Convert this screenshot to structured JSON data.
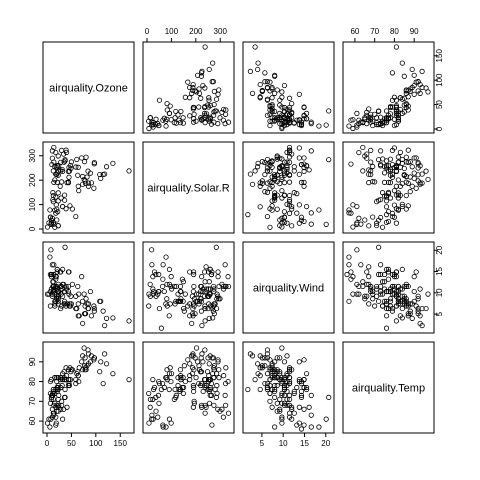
{
  "chart_data": {
    "type": "scatter",
    "kind": "scatterplot-matrix",
    "variables": [
      "airquality.Ozone",
      "airquality.Solar.R",
      "airquality.Wind",
      "airquality.Temp"
    ],
    "axes": {
      "airquality.Ozone": {
        "range": [
          0,
          170
        ],
        "ticks": [
          0,
          50,
          100,
          150
        ],
        "tick_labels": [
          "0",
          "50",
          "100",
          "150"
        ]
      },
      "airquality.Solar.R": {
        "range": [
          0,
          340
        ],
        "ticks": [
          0,
          100,
          200,
          300
        ],
        "tick_labels": [
          "0",
          "100",
          "200",
          "300"
        ]
      },
      "airquality.Wind": {
        "range": [
          1.5,
          21
        ],
        "ticks": [
          5,
          10,
          15,
          20
        ],
        "tick_labels": [
          "5",
          "10",
          "15",
          "20"
        ]
      },
      "airquality.Temp": {
        "range": [
          56,
          98
        ],
        "ticks": [
          60,
          70,
          80,
          90
        ],
        "tick_labels": [
          "60",
          "70",
          "80",
          "90"
        ]
      }
    },
    "marker": "open-circle",
    "observations": [
      {
        "ozone": 41,
        "solar": 190,
        "wind": 7.4,
        "temp": 67
      },
      {
        "ozone": 36,
        "solar": 118,
        "wind": 8.0,
        "temp": 72
      },
      {
        "ozone": 12,
        "solar": 149,
        "wind": 12.6,
        "temp": 74
      },
      {
        "ozone": 18,
        "solar": 313,
        "wind": 11.5,
        "temp": 62
      },
      {
        "ozone": null,
        "solar": null,
        "wind": 14.3,
        "temp": 56
      },
      {
        "ozone": 28,
        "solar": null,
        "wind": 14.9,
        "temp": 66
      },
      {
        "ozone": 23,
        "solar": 299,
        "wind": 8.6,
        "temp": 65
      },
      {
        "ozone": 19,
        "solar": 99,
        "wind": 13.8,
        "temp": 59
      },
      {
        "ozone": 8,
        "solar": 19,
        "wind": 20.1,
        "temp": 61
      },
      {
        "ozone": null,
        "solar": 194,
        "wind": 8.6,
        "temp": 69
      },
      {
        "ozone": 7,
        "solar": null,
        "wind": 6.9,
        "temp": 74
      },
      {
        "ozone": 16,
        "solar": 256,
        "wind": 9.7,
        "temp": 69
      },
      {
        "ozone": 11,
        "solar": 290,
        "wind": 9.2,
        "temp": 66
      },
      {
        "ozone": 14,
        "solar": 274,
        "wind": 10.9,
        "temp": 68
      },
      {
        "ozone": 18,
        "solar": 65,
        "wind": 13.2,
        "temp": 58
      },
      {
        "ozone": 14,
        "solar": 334,
        "wind": 11.5,
        "temp": 64
      },
      {
        "ozone": 34,
        "solar": 307,
        "wind": 12.0,
        "temp": 66
      },
      {
        "ozone": 6,
        "solar": 78,
        "wind": 18.4,
        "temp": 57
      },
      {
        "ozone": 30,
        "solar": 322,
        "wind": 11.5,
        "temp": 68
      },
      {
        "ozone": 11,
        "solar": 44,
        "wind": 9.7,
        "temp": 62
      },
      {
        "ozone": 1,
        "solar": 8,
        "wind": 9.7,
        "temp": 59
      },
      {
        "ozone": 11,
        "solar": 320,
        "wind": 16.6,
        "temp": 73
      },
      {
        "ozone": 4,
        "solar": 25,
        "wind": 9.7,
        "temp": 61
      },
      {
        "ozone": 32,
        "solar": 92,
        "wind": 12.0,
        "temp": 61
      },
      {
        "ozone": null,
        "solar": 66,
        "wind": 16.6,
        "temp": 57
      },
      {
        "ozone": null,
        "solar": 266,
        "wind": 14.9,
        "temp": 58
      },
      {
        "ozone": null,
        "solar": null,
        "wind": 8.0,
        "temp": 57
      },
      {
        "ozone": 23,
        "solar": 13,
        "wind": 12.0,
        "temp": 67
      },
      {
        "ozone": 45,
        "solar": 252,
        "wind": 14.9,
        "temp": 81
      },
      {
        "ozone": 115,
        "solar": 223,
        "wind": 5.7,
        "temp": 79
      },
      {
        "ozone": 37,
        "solar": 279,
        "wind": 7.4,
        "temp": 76
      },
      {
        "ozone": null,
        "solar": 286,
        "wind": 8.6,
        "temp": 78
      },
      {
        "ozone": null,
        "solar": 287,
        "wind": 9.7,
        "temp": 74
      },
      {
        "ozone": null,
        "solar": 242,
        "wind": 16.1,
        "temp": 67
      },
      {
        "ozone": null,
        "solar": 186,
        "wind": 9.2,
        "temp": 84
      },
      {
        "ozone": null,
        "solar": 220,
        "wind": 8.6,
        "temp": 85
      },
      {
        "ozone": null,
        "solar": 264,
        "wind": 14.3,
        "temp": 79
      },
      {
        "ozone": 29,
        "solar": 127,
        "wind": 9.7,
        "temp": 82
      },
      {
        "ozone": null,
        "solar": 273,
        "wind": 6.9,
        "temp": 87
      },
      {
        "ozone": 71,
        "solar": 291,
        "wind": 13.8,
        "temp": 90
      },
      {
        "ozone": 39,
        "solar": 323,
        "wind": 11.5,
        "temp": 87
      },
      {
        "ozone": null,
        "solar": 259,
        "wind": 10.9,
        "temp": 93
      },
      {
        "ozone": null,
        "solar": 250,
        "wind": 9.2,
        "temp": 92
      },
      {
        "ozone": 23,
        "solar": 148,
        "wind": 8.0,
        "temp": 82
      },
      {
        "ozone": null,
        "solar": 332,
        "wind": 13.8,
        "temp": 80
      },
      {
        "ozone": null,
        "solar": 322,
        "wind": 11.5,
        "temp": 79
      },
      {
        "ozone": 21,
        "solar": 191,
        "wind": 14.9,
        "temp": 77
      },
      {
        "ozone": 37,
        "solar": 284,
        "wind": 20.7,
        "temp": 72
      },
      {
        "ozone": 20,
        "solar": 37,
        "wind": 9.2,
        "temp": 65
      },
      {
        "ozone": 12,
        "solar": 120,
        "wind": 11.5,
        "temp": 73
      },
      {
        "ozone": 13,
        "solar": 137,
        "wind": 10.3,
        "temp": 76
      },
      {
        "ozone": null,
        "solar": 150,
        "wind": 6.3,
        "temp": 77
      },
      {
        "ozone": null,
        "solar": 59,
        "wind": 1.7,
        "temp": 76
      },
      {
        "ozone": null,
        "solar": 91,
        "wind": 4.6,
        "temp": 76
      },
      {
        "ozone": null,
        "solar": 250,
        "wind": 6.3,
        "temp": 76
      },
      {
        "ozone": null,
        "solar": 135,
        "wind": 8.0,
        "temp": 75
      },
      {
        "ozone": null,
        "solar": 127,
        "wind": 8.0,
        "temp": 78
      },
      {
        "ozone": null,
        "solar": 47,
        "wind": 10.3,
        "temp": 73
      },
      {
        "ozone": null,
        "solar": 98,
        "wind": 11.5,
        "temp": 80
      },
      {
        "ozone": null,
        "solar": 31,
        "wind": 14.9,
        "temp": 77
      },
      {
        "ozone": null,
        "solar": 138,
        "wind": 8.0,
        "temp": 83
      },
      {
        "ozone": 135,
        "solar": 269,
        "wind": 4.1,
        "temp": 84
      },
      {
        "ozone": 49,
        "solar": 248,
        "wind": 9.2,
        "temp": 85
      },
      {
        "ozone": 32,
        "solar": 236,
        "wind": 9.2,
        "temp": 81
      },
      {
        "ozone": null,
        "solar": 101,
        "wind": 10.9,
        "temp": 84
      },
      {
        "ozone": 64,
        "solar": 175,
        "wind": 4.6,
        "temp": 83
      },
      {
        "ozone": 40,
        "solar": 314,
        "wind": 10.9,
        "temp": 83
      },
      {
        "ozone": 77,
        "solar": 276,
        "wind": 5.1,
        "temp": 88
      },
      {
        "ozone": 97,
        "solar": 267,
        "wind": 6.3,
        "temp": 92
      },
      {
        "ozone": 97,
        "solar": 272,
        "wind": 5.7,
        "temp": 92
      },
      {
        "ozone": 85,
        "solar": 175,
        "wind": 7.4,
        "temp": 89
      },
      {
        "ozone": null,
        "solar": 139,
        "wind": 8.6,
        "temp": 82
      },
      {
        "ozone": 10,
        "solar": 264,
        "wind": 14.3,
        "temp": 73
      },
      {
        "ozone": 27,
        "solar": 175,
        "wind": 14.9,
        "temp": 81
      },
      {
        "ozone": null,
        "solar": 291,
        "wind": 14.9,
        "temp": 91
      },
      {
        "ozone": 7,
        "solar": 48,
        "wind": 14.3,
        "temp": 80
      },
      {
        "ozone": 48,
        "solar": 260,
        "wind": 6.9,
        "temp": 81
      },
      {
        "ozone": 35,
        "solar": 274,
        "wind": 10.3,
        "temp": 82
      },
      {
        "ozone": 61,
        "solar": 285,
        "wind": 6.3,
        "temp": 84
      },
      {
        "ozone": 79,
        "solar": 187,
        "wind": 5.1,
        "temp": 87
      },
      {
        "ozone": 63,
        "solar": 220,
        "wind": 11.5,
        "temp": 85
      },
      {
        "ozone": 16,
        "solar": 7,
        "wind": 6.9,
        "temp": 74
      },
      {
        "ozone": null,
        "solar": 258,
        "wind": 9.7,
        "temp": 81
      },
      {
        "ozone": null,
        "solar": 295,
        "wind": 11.5,
        "temp": 82
      },
      {
        "ozone": 80,
        "solar": 294,
        "wind": 8.6,
        "temp": 86
      },
      {
        "ozone": 108,
        "solar": 223,
        "wind": 8.0,
        "temp": 85
      },
      {
        "ozone": 20,
        "solar": 81,
        "wind": 8.6,
        "temp": 82
      },
      {
        "ozone": 52,
        "solar": 82,
        "wind": 12.0,
        "temp": 86
      },
      {
        "ozone": 82,
        "solar": 213,
        "wind": 7.4,
        "temp": 88
      },
      {
        "ozone": 50,
        "solar": 275,
        "wind": 7.4,
        "temp": 86
      },
      {
        "ozone": 64,
        "solar": 253,
        "wind": 7.4,
        "temp": 83
      },
      {
        "ozone": 59,
        "solar": 254,
        "wind": 9.2,
        "temp": 81
      },
      {
        "ozone": 39,
        "solar": 83,
        "wind": 6.9,
        "temp": 81
      },
      {
        "ozone": 9,
        "solar": 24,
        "wind": 13.8,
        "temp": 81
      },
      {
        "ozone": 16,
        "solar": 77,
        "wind": 7.4,
        "temp": 82
      },
      {
        "ozone": 78,
        "solar": null,
        "wind": 6.9,
        "temp": 86
      },
      {
        "ozone": 35,
        "solar": null,
        "wind": 7.4,
        "temp": 85
      },
      {
        "ozone": 66,
        "solar": null,
        "wind": 4.6,
        "temp": 87
      },
      {
        "ozone": 122,
        "solar": 255,
        "wind": 4.0,
        "temp": 89
      },
      {
        "ozone": 89,
        "solar": 229,
        "wind": 10.3,
        "temp": 90
      },
      {
        "ozone": 110,
        "solar": 207,
        "wind": 8.0,
        "temp": 90
      },
      {
        "ozone": null,
        "solar": 222,
        "wind": 8.6,
        "temp": 92
      },
      {
        "ozone": null,
        "solar": 137,
        "wind": 11.5,
        "temp": 86
      },
      {
        "ozone": 44,
        "solar": 192,
        "wind": 11.5,
        "temp": 86
      },
      {
        "ozone": 28,
        "solar": 273,
        "wind": 11.5,
        "temp": 82
      },
      {
        "ozone": 65,
        "solar": 157,
        "wind": 9.7,
        "temp": 80
      },
      {
        "ozone": null,
        "solar": 64,
        "wind": 11.5,
        "temp": 79
      },
      {
        "ozone": 22,
        "solar": 71,
        "wind": 10.3,
        "temp": 77
      },
      {
        "ozone": 59,
        "solar": 51,
        "wind": 6.3,
        "temp": 79
      },
      {
        "ozone": 23,
        "solar": 115,
        "wind": 7.4,
        "temp": 76
      },
      {
        "ozone": 31,
        "solar": 244,
        "wind": 10.9,
        "temp": 78
      },
      {
        "ozone": 44,
        "solar": 190,
        "wind": 10.3,
        "temp": 78
      },
      {
        "ozone": 21,
        "solar": 259,
        "wind": 15.5,
        "temp": 77
      },
      {
        "ozone": 9,
        "solar": 36,
        "wind": 14.3,
        "temp": 72
      },
      {
        "ozone": null,
        "solar": 255,
        "wind": 12.6,
        "temp": 75
      },
      {
        "ozone": 45,
        "solar": 212,
        "wind": 9.7,
        "temp": 79
      },
      {
        "ozone": 168,
        "solar": 238,
        "wind": 3.4,
        "temp": 81
      },
      {
        "ozone": 73,
        "solar": 215,
        "wind": 8.0,
        "temp": 86
      },
      {
        "ozone": null,
        "solar": 153,
        "wind": 5.7,
        "temp": 88
      },
      {
        "ozone": 76,
        "solar": 203,
        "wind": 9.7,
        "temp": 97
      },
      {
        "ozone": 118,
        "solar": 225,
        "wind": 2.3,
        "temp": 94
      },
      {
        "ozone": 84,
        "solar": 237,
        "wind": 6.3,
        "temp": 96
      },
      {
        "ozone": 85,
        "solar": 188,
        "wind": 6.3,
        "temp": 94
      },
      {
        "ozone": 96,
        "solar": 167,
        "wind": 6.9,
        "temp": 91
      },
      {
        "ozone": 78,
        "solar": 197,
        "wind": 5.1,
        "temp": 92
      },
      {
        "ozone": 73,
        "solar": 183,
        "wind": 2.8,
        "temp": 93
      },
      {
        "ozone": 91,
        "solar": 189,
        "wind": 4.6,
        "temp": 93
      },
      {
        "ozone": 47,
        "solar": 95,
        "wind": 7.4,
        "temp": 87
      },
      {
        "ozone": 32,
        "solar": 92,
        "wind": 15.5,
        "temp": 84
      },
      {
        "ozone": 20,
        "solar": 252,
        "wind": 10.9,
        "temp": 80
      },
      {
        "ozone": 23,
        "solar": 220,
        "wind": 10.3,
        "temp": 78
      },
      {
        "ozone": 21,
        "solar": 230,
        "wind": 10.9,
        "temp": 75
      },
      {
        "ozone": 24,
        "solar": 259,
        "wind": 9.7,
        "temp": 73
      },
      {
        "ozone": 44,
        "solar": 236,
        "wind": 14.9,
        "temp": 81
      },
      {
        "ozone": 21,
        "solar": 259,
        "wind": 15.5,
        "temp": 76
      },
      {
        "ozone": 28,
        "solar": 238,
        "wind": 6.3,
        "temp": 77
      },
      {
        "ozone": 9,
        "solar": 24,
        "wind": 10.9,
        "temp": 71
      },
      {
        "ozone": 13,
        "solar": 112,
        "wind": 11.5,
        "temp": 71
      },
      {
        "ozone": 46,
        "solar": 237,
        "wind": 6.9,
        "temp": 78
      },
      {
        "ozone": 18,
        "solar": 224,
        "wind": 13.8,
        "temp": 67
      },
      {
        "ozone": 13,
        "solar": 27,
        "wind": 10.3,
        "temp": 76
      },
      {
        "ozone": 24,
        "solar": 238,
        "wind": 10.3,
        "temp": 68
      },
      {
        "ozone": 16,
        "solar": 201,
        "wind": 8.0,
        "temp": 82
      },
      {
        "ozone": 13,
        "solar": 238,
        "wind": 12.6,
        "temp": 64
      },
      {
        "ozone": 23,
        "solar": 14,
        "wind": 9.2,
        "temp": 71
      },
      {
        "ozone": 36,
        "solar": 139,
        "wind": 10.3,
        "temp": 81
      },
      {
        "ozone": 7,
        "solar": 49,
        "wind": 10.3,
        "temp": 69
      },
      {
        "ozone": 14,
        "solar": 20,
        "wind": 16.6,
        "temp": 63
      },
      {
        "ozone": 30,
        "solar": 193,
        "wind": 6.9,
        "temp": 70
      },
      {
        "ozone": null,
        "solar": 145,
        "wind": 13.2,
        "temp": 77
      },
      {
        "ozone": 14,
        "solar": 191,
        "wind": 14.3,
        "temp": 75
      },
      {
        "ozone": 18,
        "solar": 131,
        "wind": 8.0,
        "temp": 76
      },
      {
        "ozone": 20,
        "solar": 223,
        "wind": 11.5,
        "temp": 68
      }
    ]
  }
}
